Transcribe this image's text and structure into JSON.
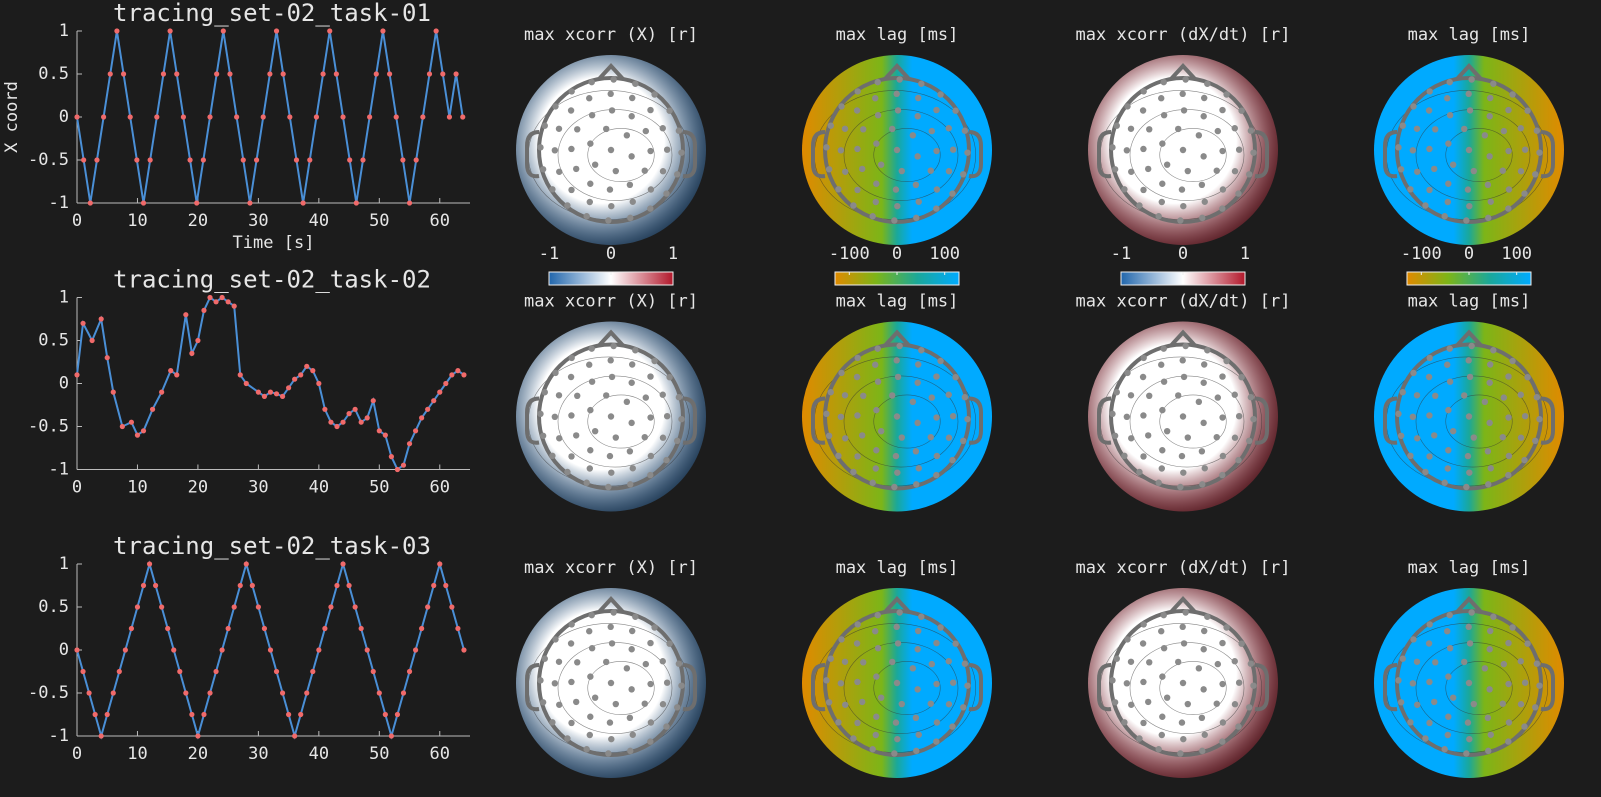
{
  "chart_data": [
    {
      "type": "line",
      "title": "tracing_set-02_task-01",
      "xlabel": "Time [s]",
      "ylabel": "X coord",
      "x": [
        0,
        1.1,
        2.2,
        3.3,
        4.4,
        5.5,
        6.6,
        7.7,
        8.8,
        9.9,
        11,
        12.1,
        13.2,
        14.3,
        15.4,
        16.5,
        17.6,
        18.7,
        19.8,
        20.9,
        22,
        23.1,
        24.2,
        25.3,
        26.4,
        27.5,
        28.6,
        29.7,
        30.8,
        31.9,
        33,
        34.1,
        35.2,
        36.3,
        37.4,
        38.5,
        39.6,
        40.7,
        41.8,
        42.9,
        44,
        45.1,
        46.2,
        47.3,
        48.4,
        49.5,
        50.6,
        51.7,
        52.8,
        53.9,
        55,
        56.1,
        57.2,
        58.3,
        59.4,
        60.5,
        61.6,
        62.7,
        63.8
      ],
      "series": [
        {
          "color": "#4a8fd6",
          "marker_color": "#f06a6a",
          "values": [
            0,
            -0.5,
            -1,
            -0.5,
            0,
            0.5,
            1,
            0.5,
            0,
            -0.5,
            -1,
            -0.5,
            0,
            0.5,
            1,
            0.5,
            0,
            -0.5,
            -1,
            -0.5,
            0,
            0.5,
            1,
            0.5,
            0,
            -0.5,
            -1,
            -0.5,
            0,
            0.5,
            1,
            0.5,
            0,
            -0.5,
            -1,
            -0.5,
            0,
            0.5,
            1,
            0.5,
            0,
            -0.5,
            -1,
            -0.5,
            0,
            0.5,
            1,
            0.5,
            0,
            -0.5,
            -1,
            -0.5,
            0,
            0.5,
            1,
            0.5,
            0,
            0.5,
            0
          ]
        }
      ],
      "xlim": [
        0,
        65
      ],
      "ylim": [
        -1,
        1
      ],
      "xticks": [
        0,
        10,
        20,
        30,
        40,
        50,
        60
      ],
      "yticks": [
        -1,
        -0.5,
        0,
        0.5,
        1
      ]
    },
    {
      "type": "topoplot",
      "title": "max xcorr (X) [r]",
      "colormap": [
        "#2166ac",
        "#ffffff",
        "#b2182b"
      ],
      "clim": [
        -1,
        1
      ],
      "cticks": [
        -1,
        0,
        1
      ]
    },
    {
      "type": "topoplot",
      "title": "max lag [ms]",
      "colormap": [
        "#e08a00",
        "#7cb518",
        "#1aa89a",
        "#00aaff"
      ],
      "clim": [
        -130,
        130
      ],
      "cticks": [
        -100,
        0,
        100
      ]
    },
    {
      "type": "topoplot",
      "title": "max xcorr (dX/dt) [r]",
      "colormap": [
        "#2166ac",
        "#ffffff",
        "#b2182b"
      ],
      "clim": [
        -1,
        1
      ],
      "cticks": [
        -1,
        0,
        1
      ]
    },
    {
      "type": "topoplot",
      "title": "max lag [ms]",
      "colormap": [
        "#e08a00",
        "#7cb518",
        "#1aa89a",
        "#00aaff"
      ],
      "clim": [
        -130,
        130
      ],
      "cticks": [
        -100,
        0,
        100
      ]
    },
    {
      "type": "line",
      "title": "tracing_set-02_task-02",
      "x": [
        0,
        1,
        2.5,
        4,
        5,
        6,
        7.5,
        9,
        10,
        11,
        12.5,
        14,
        15.5,
        16.5,
        18,
        19,
        20,
        21,
        22,
        23,
        24,
        25,
        26,
        27,
        28,
        30,
        31,
        32,
        33,
        34,
        35,
        36,
        37,
        38,
        39,
        40,
        41,
        42,
        43,
        44,
        45,
        46,
        47,
        48,
        49,
        50,
        51,
        52,
        53,
        54,
        55,
        56,
        57,
        58,
        59,
        60,
        61,
        62,
        63,
        64
      ],
      "series": [
        {
          "color": "#4a8fd6",
          "marker_color": "#f06a6a",
          "values": [
            0.1,
            0.7,
            0.5,
            0.75,
            0.3,
            -0.1,
            -0.5,
            -0.45,
            -0.6,
            -0.55,
            -0.3,
            -0.1,
            0.15,
            0.1,
            0.8,
            0.35,
            0.5,
            0.85,
            1,
            0.95,
            1,
            0.95,
            0.9,
            0.1,
            0,
            -0.1,
            -0.15,
            -0.1,
            -0.12,
            -0.15,
            -0.05,
            0.05,
            0.1,
            0.2,
            0.15,
            0,
            -0.3,
            -0.45,
            -0.5,
            -0.45,
            -0.35,
            -0.3,
            -0.45,
            -0.4,
            -0.2,
            -0.55,
            -0.6,
            -0.85,
            -1,
            -0.95,
            -0.7,
            -0.55,
            -0.4,
            -0.3,
            -0.2,
            -0.1,
            0,
            0.1,
            0.15,
            0.1
          ]
        }
      ],
      "xlim": [
        0,
        65
      ],
      "ylim": [
        -1,
        1
      ],
      "xticks": [
        0,
        10,
        20,
        30,
        40,
        50,
        60
      ],
      "yticks": [
        -1,
        -0.5,
        0,
        0.5,
        1
      ]
    },
    {
      "type": "topoplot",
      "title": "max xcorr (X) [r]",
      "colormap": [
        "#2166ac",
        "#ffffff",
        "#b2182b"
      ]
    },
    {
      "type": "topoplot",
      "title": "max lag [ms]",
      "colormap": [
        "#e08a00",
        "#7cb518",
        "#1aa89a",
        "#00aaff"
      ]
    },
    {
      "type": "topoplot",
      "title": "max xcorr (dX/dt) [r]",
      "colormap": [
        "#2166ac",
        "#ffffff",
        "#b2182b"
      ]
    },
    {
      "type": "topoplot",
      "title": "max lag [ms]",
      "colormap": [
        "#e08a00",
        "#7cb518",
        "#1aa89a",
        "#00aaff"
      ]
    },
    {
      "type": "line",
      "title": "tracing_set-02_task-03",
      "x": [
        0,
        1,
        2,
        3,
        4,
        5,
        6,
        7,
        8,
        9,
        10,
        11,
        12,
        13,
        14,
        15,
        16,
        17,
        18,
        19,
        20,
        21,
        22,
        23,
        24,
        25,
        26,
        27,
        28,
        29,
        30,
        31,
        32,
        33,
        34,
        35,
        36,
        37,
        38,
        39,
        40,
        41,
        42,
        43,
        44,
        45,
        46,
        47,
        48,
        49,
        50,
        51,
        52,
        53,
        54,
        55,
        56,
        57,
        58,
        59,
        60,
        61,
        62,
        63,
        64
      ],
      "series": [
        {
          "color": "#4a8fd6",
          "marker_color": "#f06a6a",
          "values": [
            0,
            -0.25,
            -0.5,
            -0.75,
            -1,
            -0.75,
            -0.5,
            -0.25,
            0,
            0.25,
            0.5,
            0.75,
            1,
            0.75,
            0.5,
            0.25,
            0,
            -0.25,
            -0.5,
            -0.75,
            -1,
            -0.75,
            -0.5,
            -0.25,
            0,
            0.25,
            0.5,
            0.75,
            1,
            0.75,
            0.5,
            0.25,
            0,
            -0.25,
            -0.5,
            -0.75,
            -1,
            -0.75,
            -0.5,
            -0.25,
            0,
            0.25,
            0.5,
            0.75,
            1,
            0.75,
            0.5,
            0.25,
            0,
            -0.25,
            -0.5,
            -0.75,
            -1,
            -0.75,
            -0.5,
            -0.25,
            0,
            0.25,
            0.5,
            0.75,
            1,
            0.75,
            0.5,
            0.25,
            0
          ]
        }
      ],
      "xlim": [
        0,
        65
      ],
      "ylim": [
        -1,
        1
      ],
      "xticks": [
        0,
        10,
        20,
        30,
        40,
        50,
        60
      ],
      "yticks": [
        -1,
        -0.5,
        0,
        0.5,
        1
      ]
    },
    {
      "type": "topoplot",
      "title": "max xcorr (X) [r]",
      "colormap": [
        "#2166ac",
        "#ffffff",
        "#b2182b"
      ]
    },
    {
      "type": "topoplot",
      "title": "max lag [ms]",
      "colormap": [
        "#e08a00",
        "#7cb518",
        "#1aa89a",
        "#00aaff"
      ]
    },
    {
      "type": "topoplot",
      "title": "max xcorr (dX/dt) [r]",
      "colormap": [
        "#2166ac",
        "#ffffff",
        "#b2182b"
      ]
    },
    {
      "type": "topoplot",
      "title": "max lag [ms]",
      "colormap": [
        "#e08a00",
        "#7cb518",
        "#1aa89a",
        "#00aaff"
      ]
    }
  ]
}
